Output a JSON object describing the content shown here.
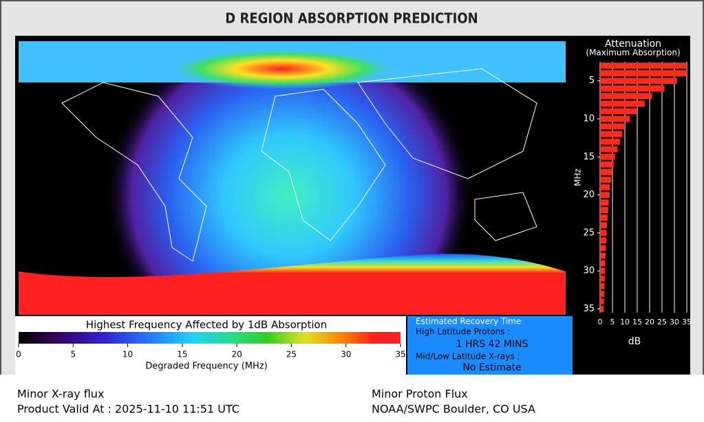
{
  "header": {
    "title": "D REGION ABSORPTION PREDICTION"
  },
  "colorbar": {
    "title": "Highest Frequency Affected by 1dB Absorption",
    "x_label": "Degraded Frequency (MHz)",
    "lim": [
      0,
      35
    ],
    "ticks": [
      0,
      5,
      10,
      15,
      20,
      25,
      30,
      35
    ]
  },
  "recovery": {
    "title": "Estimated Recovery Time",
    "high_label": "High Latitude Protons :",
    "high_value": "1 HRS 42 MINS",
    "low_label": "Mid/Low Latitude X-rays :",
    "low_value": "No Estimate"
  },
  "attenuation": {
    "title": "Attenuation",
    "subtitle": "(Maximum Absorption)",
    "y_label": "MHz",
    "x_label": "dB",
    "color": "#ff2a1a",
    "xlim": [
      0,
      35
    ],
    "xticks": [
      0,
      5,
      10,
      15,
      20,
      25,
      30,
      35
    ],
    "ylim": [
      2.5,
      35.5
    ],
    "yticks": [
      5,
      10,
      15,
      20,
      25,
      30,
      35
    ],
    "frequencies": [
      3,
      4,
      5,
      6,
      7,
      8,
      9,
      10,
      11,
      12,
      13,
      14,
      15,
      16,
      17,
      18,
      19,
      20,
      21,
      22,
      23,
      24,
      25,
      26,
      27,
      28,
      29,
      30,
      31,
      32,
      33,
      34,
      35
    ],
    "values": [
      35,
      35,
      31,
      26,
      21,
      18,
      15,
      12,
      10,
      9,
      8,
      7,
      6,
      5.5,
      5,
      4.5,
      4,
      3.8,
      3.5,
      3.3,
      3,
      2.8,
      2.6,
      2.5,
      2.3,
      2.2,
      2.1,
      2,
      1.9,
      1.8,
      1.7,
      1.6,
      1.5
    ]
  },
  "footer": {
    "xray": "Minor X-ray flux",
    "valid": "Product Valid At : 2025-11-10 11:51 UTC",
    "proton": "Minor Proton Flux",
    "source": "NOAA/SWPC Boulder, CO USA"
  }
}
